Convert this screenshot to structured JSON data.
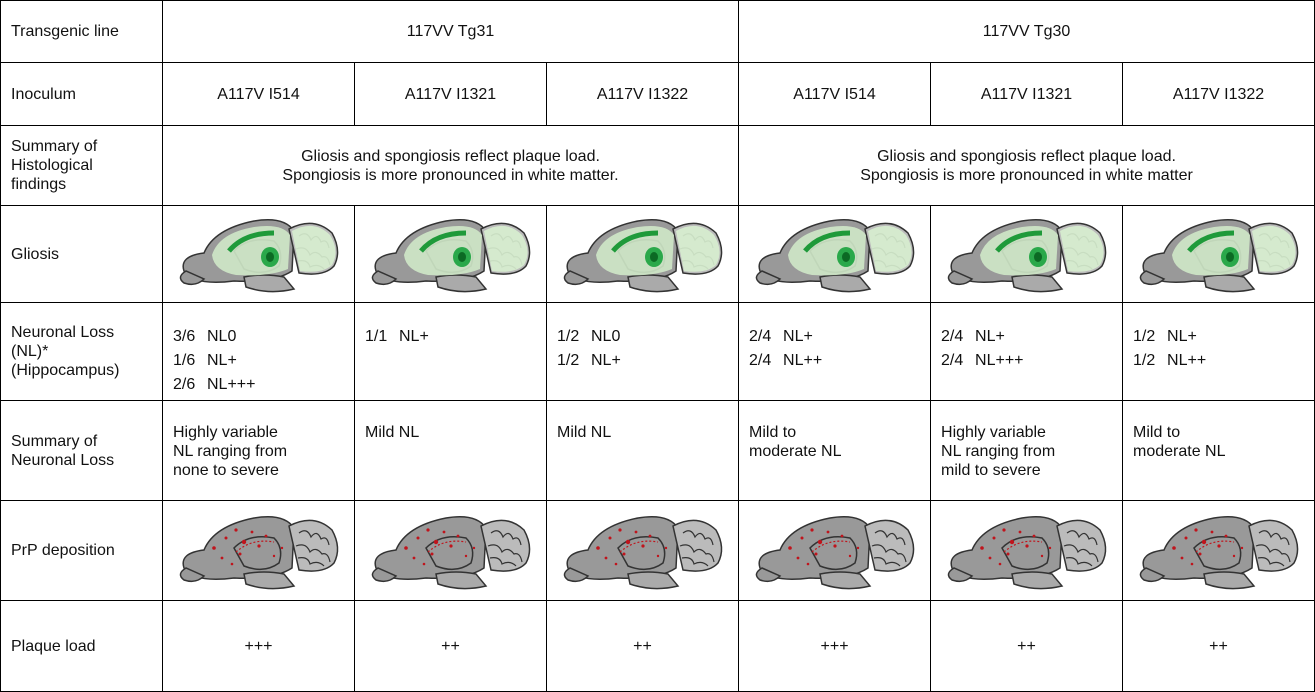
{
  "table": {
    "rows": [
      {
        "label": "Transgenic line",
        "cells": [
          "117VV Tg31",
          "117VV Tg30"
        ]
      },
      {
        "label": "Inoculum",
        "cells": [
          "A117V I514",
          "A117V I1321",
          "A117V I1322",
          "A117V I514",
          "A117V I1321",
          "A117V I1322"
        ]
      },
      {
        "label": [
          "Summary of",
          "Histological",
          "findings"
        ],
        "cells": [
          [
            "Gliosis and spongiosis reflect plaque load.",
            "Spongiosis is more pronounced in white matter."
          ],
          [
            "Gliosis and spongiosis reflect plaque load.",
            "Spongiosis is more pronounced in white matter"
          ]
        ]
      },
      {
        "label": "Gliosis"
      },
      {
        "label": [
          "Neuronal Loss",
          "(NL)*",
          "(Hippocampus)"
        ],
        "cells": [
          [
            [
              "3/6",
              "NL0"
            ],
            [
              "1/6",
              "NL+"
            ],
            [
              "2/6",
              "NL+++"
            ]
          ],
          [
            [
              "1/1",
              "NL+"
            ]
          ],
          [
            [
              "1/2",
              "NL0"
            ],
            [
              "1/2",
              "NL+"
            ]
          ],
          [
            [
              "2/4",
              "NL+"
            ],
            [
              "2/4",
              "NL++"
            ]
          ],
          [
            [
              "2/4",
              "NL+"
            ],
            [
              "2/4",
              "NL+++"
            ]
          ],
          [
            [
              "1/2",
              "NL+"
            ],
            [
              "1/2",
              "NL++"
            ]
          ]
        ]
      },
      {
        "label": [
          "Summary of",
          "Neuronal Loss"
        ],
        "cells": [
          [
            "Highly variable",
            "NL ranging from",
            "none to severe"
          ],
          [
            "Mild NL"
          ],
          [
            "Mild NL"
          ],
          [
            "Mild to",
            "moderate NL"
          ],
          [
            "Highly variable",
            "NL ranging from",
            "mild to severe"
          ],
          [
            "Mild to",
            "moderate NL"
          ]
        ]
      },
      {
        "label": "PrP deposition"
      },
      {
        "label": "Plaque load",
        "cells": [
          "+++",
          "++",
          "++",
          "+++",
          "++",
          "++"
        ]
      }
    ]
  }
}
